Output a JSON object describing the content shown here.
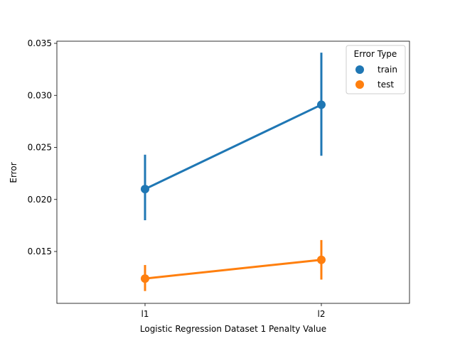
{
  "chart_data": {
    "type": "line",
    "title": "",
    "xlabel": "Logistic Regression Dataset 1 Penalty Value",
    "ylabel": "Error",
    "categories": [
      "l1",
      "l2"
    ],
    "ylim": [
      0.01,
      0.035
    ],
    "yticks": [
      0.015,
      0.02,
      0.025,
      0.03,
      0.035
    ],
    "ytick_labels": [
      "0.015",
      "0.020",
      "0.025",
      "0.030",
      "0.035"
    ],
    "grid": false,
    "legend": {
      "title": "Error Type",
      "placement": "top-right"
    },
    "series": [
      {
        "name": "train",
        "color": "#1f77b4",
        "values": [
          0.021,
          0.0291
        ],
        "error_low": [
          0.018,
          0.0242
        ],
        "error_high": [
          0.0243,
          0.0341
        ]
      },
      {
        "name": "test",
        "color": "#ff7f0e",
        "values": [
          0.0124,
          0.0142
        ],
        "error_low": [
          0.0112,
          0.0123
        ],
        "error_high": [
          0.0137,
          0.0161
        ]
      }
    ]
  }
}
